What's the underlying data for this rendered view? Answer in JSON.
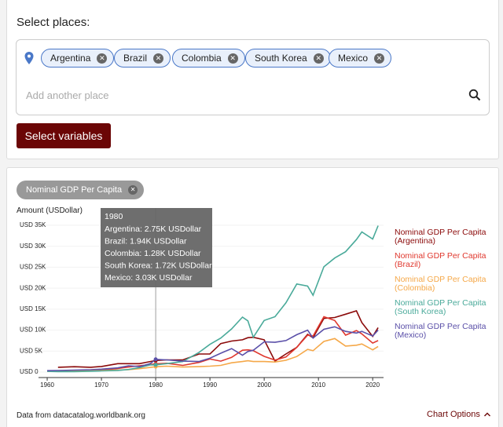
{
  "places_panel": {
    "title": "Select places:",
    "places": [
      "Argentina",
      "Brazil",
      "Colombia",
      "South Korea",
      "Mexico"
    ],
    "placeholder": "Add another place",
    "button": "Select variables"
  },
  "variable_chip": "Nominal GDP Per Capita",
  "chart_data": {
    "type": "line",
    "y_label": "Amount (USDollar)",
    "x": [
      1960,
      1962,
      1965,
      1968,
      1970,
      1973,
      1975,
      1977,
      1979,
      1980,
      1982,
      1985,
      1988,
      1990,
      1992,
      1994,
      1996,
      1997,
      1998,
      2000,
      2002,
      2004,
      2006,
      2008,
      2009,
      2011,
      2013,
      2015,
      2017,
      2018,
      2020,
      2021
    ],
    "xlim": [
      1958.4,
      2022
    ],
    "xticks": [
      1960,
      1970,
      1980,
      1990,
      2000,
      2010,
      2020
    ],
    "ylim": [
      0,
      35000
    ],
    "yticks": [
      {
        "value": 0,
        "label": "USD 0"
      },
      {
        "value": 5000,
        "label": "USD 5K"
      },
      {
        "value": 10000,
        "label": "USD 10K"
      },
      {
        "value": 15000,
        "label": "USD 15K"
      },
      {
        "value": 20000,
        "label": "USD 20K"
      },
      {
        "value": 25000,
        "label": "USD 25K"
      },
      {
        "value": 30000,
        "label": "USD 30K"
      },
      {
        "value": 35000,
        "label": "USD 35K"
      }
    ],
    "series": [
      {
        "name": "Nominal GDP Per Capita (Argentina)",
        "color": "#8b0a0a",
        "values": [
          null,
          1150,
          1270,
          1140,
          1320,
          2000,
          2000,
          2000,
          2500,
          2750,
          2900,
          2900,
          4300,
          4300,
          6800,
          7400,
          7700,
          8200,
          8300,
          7700,
          2600,
          4300,
          5900,
          9000,
          8200,
          12800,
          13000,
          13800,
          14600,
          11800,
          8500,
          10600
        ]
      },
      {
        "name": "Nominal GDP Per Capita (Brazil)",
        "color": "#e0382e",
        "values": [
          200,
          260,
          260,
          350,
          450,
          860,
          1200,
          1500,
          1800,
          1940,
          2100,
          1600,
          2300,
          3100,
          2600,
          3500,
          5200,
          5300,
          5100,
          3750,
          2850,
          3600,
          5900,
          8800,
          8600,
          13200,
          12300,
          8800,
          9900,
          9100,
          6900,
          7500
        ]
      },
      {
        "name": "Nominal GDP Per Capita (Colombia)",
        "color": "#f5a849",
        "values": [
          250,
          290,
          300,
          320,
          350,
          480,
          560,
          800,
          1100,
          1280,
          1400,
          1200,
          1300,
          1400,
          1600,
          2200,
          2500,
          2700,
          2500,
          2500,
          2400,
          2800,
          3700,
          5400,
          5100,
          7300,
          8000,
          6200,
          6400,
          6700,
          5300,
          6100
        ]
      },
      {
        "name": "Nominal GDP Per Capita (South Korea)",
        "color": "#4aaa9a",
        "values": [
          160,
          110,
          110,
          200,
          280,
          400,
          620,
          1050,
          1700,
          1720,
          2000,
          2500,
          4700,
          6600,
          8100,
          10300,
          13100,
          12200,
          8300,
          12300,
          13200,
          16500,
          21000,
          20500,
          18300,
          25100,
          27200,
          28700,
          31600,
          33400,
          31700,
          34900
        ]
      },
      {
        "name": "Nominal GDP Per Capita (Mexico)",
        "color": "#5a4fa8",
        "values": [
          340,
          380,
          470,
          560,
          700,
          1000,
          1500,
          1300,
          2000,
          3030,
          2900,
          2600,
          2500,
          3300,
          4500,
          5600,
          4000,
          4900,
          5200,
          7200,
          7100,
          7500,
          8900,
          10000,
          8100,
          10200,
          10800,
          9700,
          9300,
          9700,
          8600,
          10000
        ]
      }
    ],
    "tooltip": {
      "title": "1980",
      "lines": [
        "Argentina: 2.75K USDollar",
        "Brazil: 1.94K USDollar",
        "Colombia: 1.28K USDollar",
        "South Korea: 1.72K USDollar",
        "Mexico: 3.03K USDollar"
      ]
    }
  },
  "footer": {
    "source": "Data from datacatalog.worldbank.org",
    "options": "Chart Options"
  }
}
